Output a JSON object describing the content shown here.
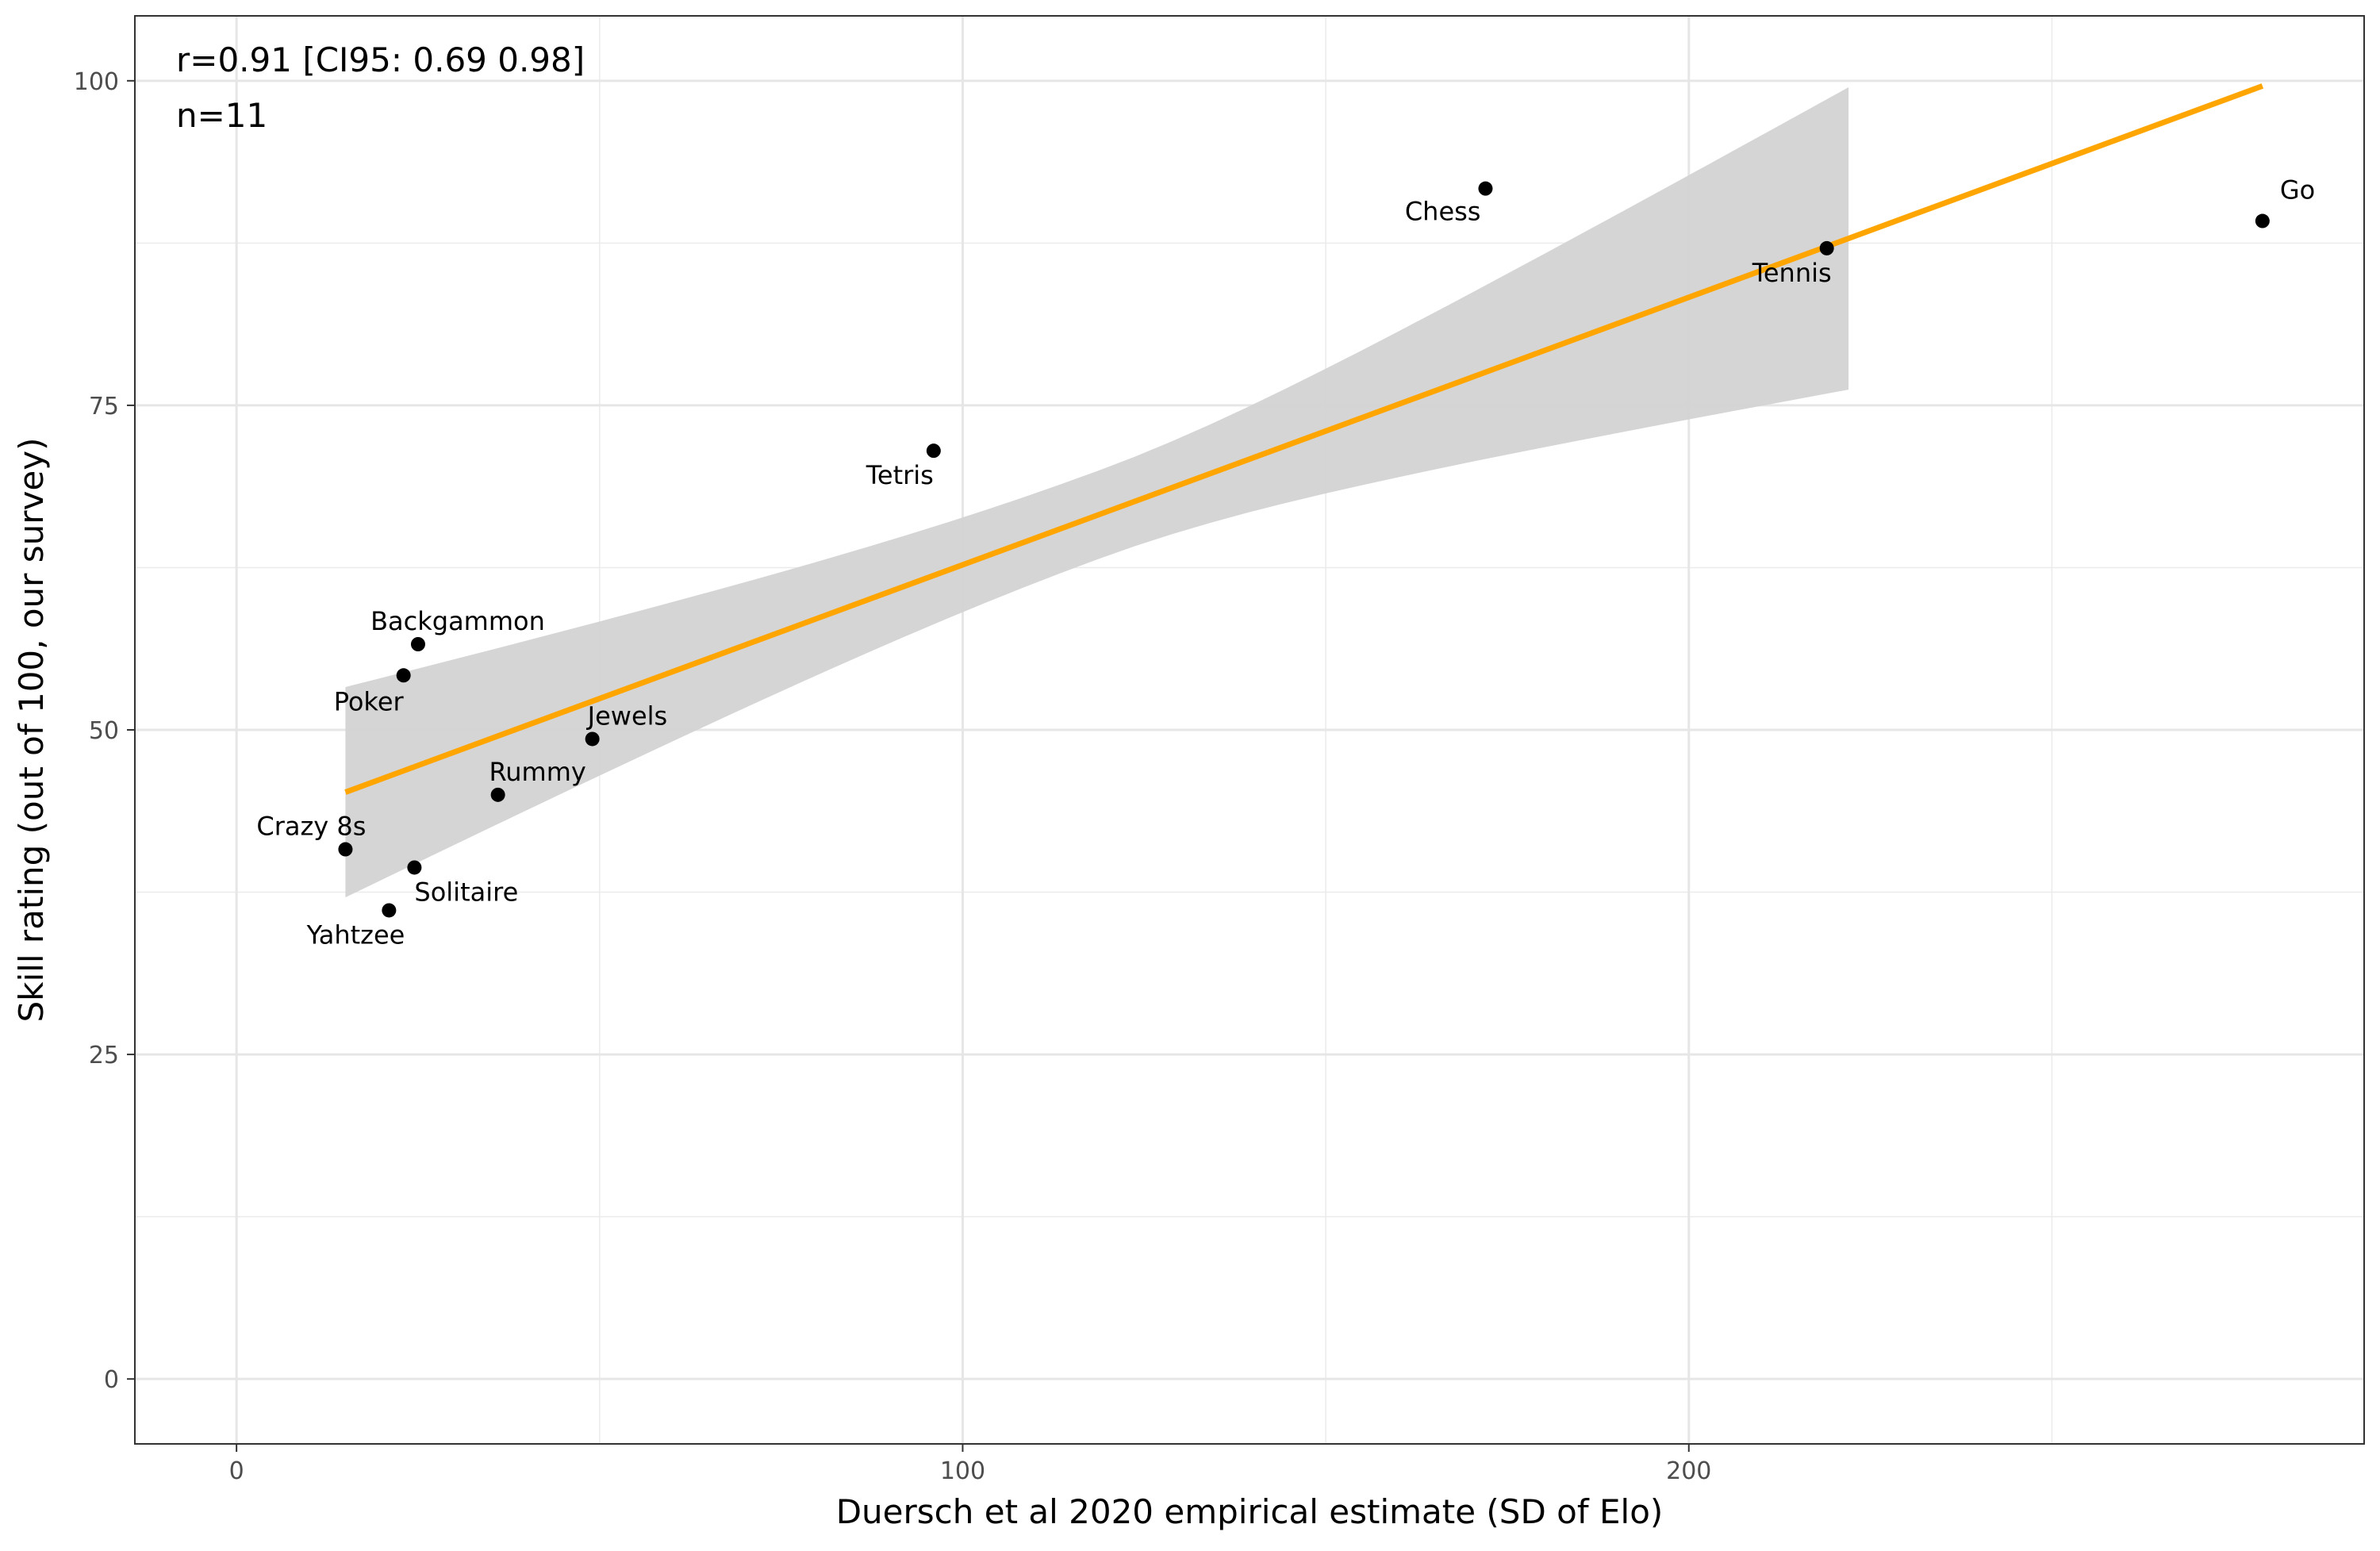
{
  "chart_data": {
    "type": "scatter",
    "xlabel": "Duersch et al 2020 empirical estimate (SD of Elo)",
    "ylabel": "Skill rating (out of 100, our survey)",
    "xlim": [
      -14,
      293
    ],
    "ylim": [
      -5,
      105
    ],
    "x_ticks": [
      0,
      100,
      200
    ],
    "y_ticks": [
      0,
      25,
      50,
      75,
      100
    ],
    "grid": true,
    "annotations": [
      "r=0.91 [CI95: 0.69 0.98]",
      "n=11"
    ],
    "points": [
      {
        "label": "Go",
        "x": 279,
        "y": 89.2
      },
      {
        "label": "Chess",
        "x": 172,
        "y": 91.7
      },
      {
        "label": "Tennis",
        "x": 219,
        "y": 87.1
      },
      {
        "label": "Tetris",
        "x": 96,
        "y": 71.5
      },
      {
        "label": "Backgammon",
        "x": 25,
        "y": 56.6
      },
      {
        "label": "Poker",
        "x": 23,
        "y": 54.2
      },
      {
        "label": "Jewels",
        "x": 49,
        "y": 49.3
      },
      {
        "label": "Rummy",
        "x": 36,
        "y": 45.0
      },
      {
        "label": "Crazy 8s",
        "x": 15,
        "y": 40.8
      },
      {
        "label": "Solitaire",
        "x": 24.5,
        "y": 39.4
      },
      {
        "label": "Yahtzee",
        "x": 21,
        "y": 36.1
      }
    ],
    "fit_line": {
      "x": [
        15,
        279
      ],
      "y": [
        45.2,
        99.6
      ],
      "color": "#FFA500"
    },
    "confidence_band": {
      "x": [
        15,
        222
      ],
      "lower": [
        37.2,
        76.6
      ],
      "upper": [
        53.3,
        99.5
      ],
      "color": "#D3D3D3"
    },
    "point_color": "#000000"
  }
}
